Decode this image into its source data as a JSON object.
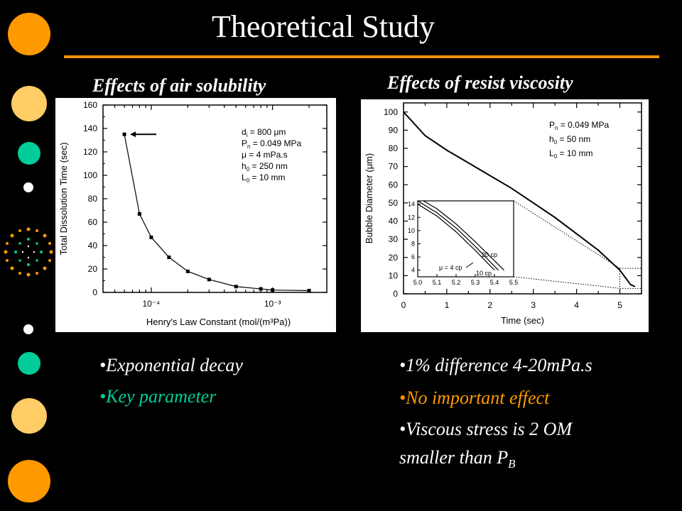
{
  "title": "Theoretical Study",
  "colors": {
    "rule": "#f39200",
    "orange": "#ff9900",
    "light_orange": "#ffcc66",
    "teal": "#00cc99",
    "key_text": "#00cc99",
    "effect_text": "#ff9900"
  },
  "left": {
    "heading": "Effects of air solubility",
    "bullets": [
      "•Exponential decay",
      "•Key parameter"
    ]
  },
  "right": {
    "heading": "Effects of resist viscosity",
    "bullets": [
      "•1% difference 4-20mPa.s",
      "•No important effect",
      "•Viscous stress is 2 OM",
      "smaller than P",
      "B"
    ]
  },
  "chart_data": [
    {
      "type": "line",
      "x_scale": "log",
      "xlabel": "Henry's Law Constant (mol/(m³Pa))",
      "ylabel": "Total Dissolution Time (sec)",
      "xlim": [
        4e-05,
        0.0028
      ],
      "ylim": [
        0,
        160
      ],
      "y_ticks": [
        "0",
        "20",
        "40",
        "60",
        "80",
        "100",
        "120",
        "140",
        "160"
      ],
      "x_tick_labels": [
        "10⁻⁴",
        "10⁻³"
      ],
      "series": [
        {
          "x": [
            6e-05,
            8e-05,
            0.0001,
            0.00014,
            0.0002,
            0.0003,
            0.0005,
            0.0008,
            0.001,
            0.002
          ],
          "y": [
            135,
            67,
            47,
            30,
            18,
            11,
            5,
            3,
            2,
            1.5
          ]
        }
      ],
      "annotations": {
        "params": [
          {
            "base": "d",
            "sub": "i",
            "rest": " = 800 μm"
          },
          {
            "base": "P",
            "sub": "n",
            "rest": " = 0.049 MPa"
          },
          {
            "base": "μ",
            "sub": "",
            "rest": " = 4 mPa.s"
          },
          {
            "base": "h",
            "sub": "0",
            "rest": " = 250 nm"
          },
          {
            "base": "L",
            "sub": "0",
            "rest": " = 10 mm"
          }
        ]
      }
    },
    {
      "type": "line",
      "xlabel": "Time (sec)",
      "ylabel": "Bubble Diameter (μm)",
      "xlim": [
        0,
        5.5
      ],
      "ylim": [
        0,
        105
      ],
      "x_ticks": [
        "0",
        "1",
        "2",
        "3",
        "4",
        "5"
      ],
      "y_ticks": [
        "0",
        "10",
        "20",
        "30",
        "40",
        "50",
        "60",
        "70",
        "80",
        "90",
        "100"
      ],
      "series": [
        {
          "x": [
            0,
            0.5,
            1,
            1.5,
            2,
            2.5,
            3,
            3.5,
            4,
            4.5,
            5,
            5.25,
            5.35
          ],
          "y": [
            100,
            87,
            79,
            72,
            65,
            58,
            50,
            42,
            33,
            24,
            13,
            5,
            4
          ]
        }
      ],
      "annotations": {
        "params": [
          {
            "base": "P",
            "sub": "n",
            "rest": " = 0.049 MPa"
          },
          {
            "base": "h",
            "sub": "0",
            "rest": " = 50 nm"
          },
          {
            "base": "L",
            "sub": "0",
            "rest": " = 10 mm"
          }
        ]
      },
      "inset": {
        "xlim": [
          5.0,
          5.5
        ],
        "ylim": [
          3,
          14.5
        ],
        "x_ticks": [
          "5.0",
          "5.1",
          "5.2",
          "5.3",
          "5.4",
          "5.5"
        ],
        "y_ticks": [
          "4",
          "6",
          "8",
          "10",
          "12",
          "14"
        ],
        "curve_labels": [
          "20 cp",
          "μ = 4 cp",
          "10 cp"
        ],
        "series": [
          {
            "name": "4 cp",
            "x": [
              5.0,
              5.1,
              5.2,
              5.3,
              5.4
            ],
            "y": [
              14,
              12.2,
              9.8,
              7.0,
              4.0
            ]
          },
          {
            "name": "10 cp",
            "x": [
              5.0,
              5.1,
              5.2,
              5.3,
              5.42
            ],
            "y": [
              14.5,
              12.7,
              10.4,
              7.6,
              4.0
            ]
          },
          {
            "name": "20 cp",
            "x": [
              5.0,
              5.1,
              5.2,
              5.3,
              5.45
            ],
            "y": [
              15.0,
              13.3,
              11.0,
              8.3,
              4.0
            ]
          }
        ]
      }
    }
  ]
}
